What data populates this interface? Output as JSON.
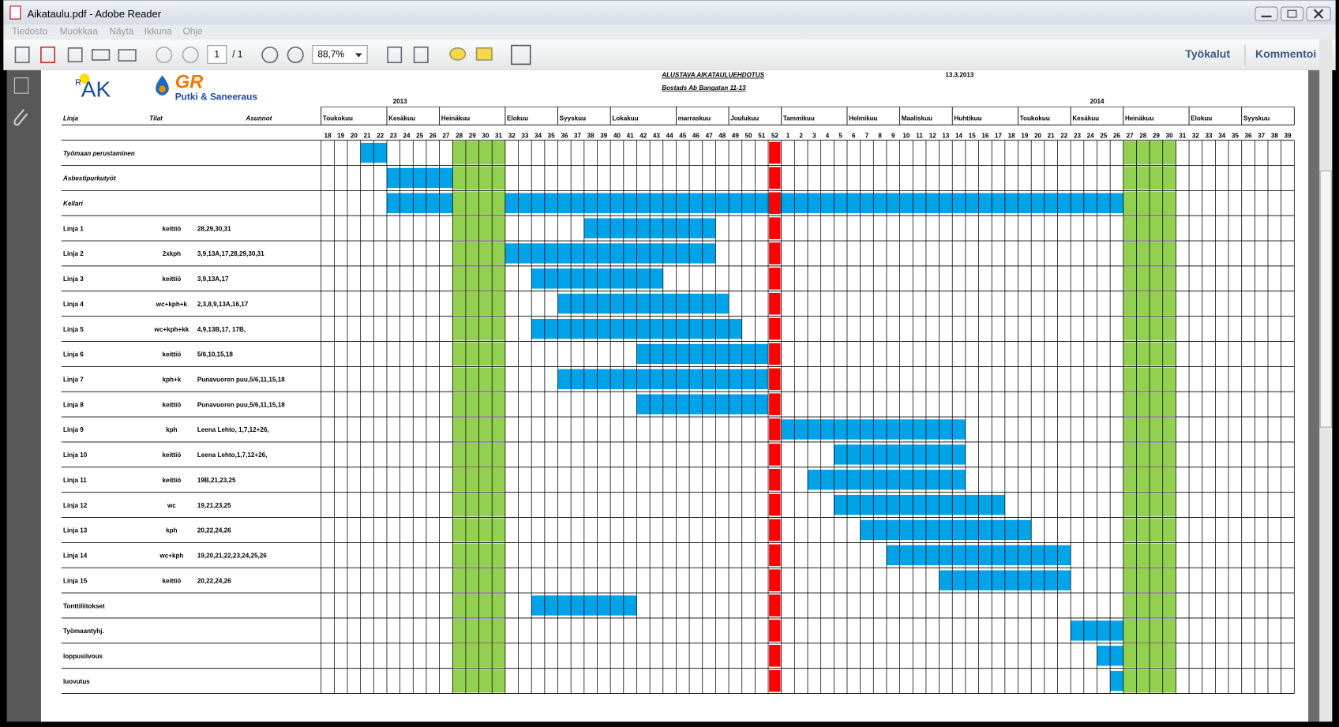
{
  "window": {
    "title": "Aikataulu.pdf - Adobe Reader"
  },
  "menu": [
    "Tiedosto",
    "Muokkaa",
    "Näytä",
    "Ikkuna",
    "Ohje"
  ],
  "toolbar": {
    "page": "1",
    "page_count": "/ 1",
    "zoom": "88,7%",
    "tools": "Työkalut",
    "comment": "Kommentoi"
  },
  "document": {
    "title": "ALUSTAVA AIKATAULUEHDOTUS",
    "subtitle": "Bostads Ab Bangatan 11-13",
    "date": "13.3.2013",
    "logo_r": "R",
    "logo_ak": "AK",
    "logo_gr": "GR",
    "logo_gr_sub": "Putki & Saneeraus",
    "headers": [
      "Linja",
      "Tilat",
      "Asunnot"
    ],
    "years": [
      "2013",
      "2014"
    ],
    "months": [
      "Toukokuu",
      "Kesäkuu",
      "Heinäkuu",
      "Elokuu",
      "Syyskuu",
      "Lokakuu",
      "marraskuu",
      "Joulukuu",
      "Tammikuu",
      "Helmikuu",
      "Maaliskuu",
      "Huhtikuu",
      "Toukokuu",
      "Kesäkuu",
      "Heinäkuu",
      "Elokuu",
      "Syyskuu"
    ],
    "weeks": [
      18,
      19,
      20,
      21,
      22,
      23,
      24,
      25,
      26,
      27,
      28,
      29,
      30,
      31,
      32,
      33,
      34,
      35,
      36,
      37,
      38,
      39,
      40,
      41,
      42,
      43,
      44,
      45,
      46,
      47,
      48,
      49,
      50,
      51,
      52,
      1,
      2,
      3,
      4,
      5,
      6,
      7,
      8,
      9,
      10,
      11,
      12,
      13,
      14,
      15,
      16,
      17,
      18,
      19,
      20,
      21,
      22,
      23,
      24,
      25,
      26,
      27,
      28,
      29,
      30,
      31,
      32,
      33,
      34,
      35,
      36,
      37,
      38,
      39
    ],
    "rows": [
      {
        "label": "Työmaan perustaminen"
      },
      {
        "label": "Asbestipurkutyöt"
      },
      {
        "label": "Kellari"
      },
      {
        "label": "Linja 1",
        "tilat": "keittiö",
        "asunnot": "28,29,30,31"
      },
      {
        "label": "Linja 2",
        "tilat": "2xkph",
        "asunnot": "3,9,13A,17,28,29,30,31"
      },
      {
        "label": "Linja 3",
        "tilat": "keittiö",
        "asunnot": "3,9,13A,17"
      },
      {
        "label": "Linja 4",
        "tilat": "wc+kph+k",
        "asunnot": "2,3,8,9,13A,16,17"
      },
      {
        "label": "Linja 5",
        "tilat": "wc+kph+kk",
        "asunnot": "4,9,13B,17, 17B,"
      },
      {
        "label": "Linja 6",
        "tilat": "keittiö",
        "asunnot": "5/6,10,15,18"
      },
      {
        "label": "Linja 7",
        "tilat": "kph+k",
        "asunnot": "Punavuoren puu,5/6,11,15,18"
      },
      {
        "label": "Linja 8",
        "tilat": "keittiö",
        "asunnot": "Punavuoren puu,5/6,11,15,18"
      },
      {
        "label": "Linja 9",
        "tilat": "kph",
        "asunnot": "Leena Lehto, 1,7,12+26,"
      },
      {
        "label": "Linja 10",
        "tilat": "keittiö",
        "asunnot": "Leena Lehto,1,7,12+26,"
      },
      {
        "label": "Linja 11",
        "tilat": "keittiö",
        "asunnot": "19B,21,23,25"
      },
      {
        "label": "Linja 12",
        "tilat": "wc",
        "asunnot": "19,21,23,25"
      },
      {
        "label": "Linja 13",
        "tilat": "kph",
        "asunnot": "20,22,24,26"
      },
      {
        "label": "Linja 14",
        "tilat": "wc+kph",
        "asunnot": "19,20,21,22,23,24,25,26"
      },
      {
        "label": "Linja 15",
        "tilat": "keittiö",
        "asunnot": "20,22,24,26"
      },
      {
        "label": "Tonttiliitokset"
      },
      {
        "label": "Työmaantyhj."
      },
      {
        "label": "loppusiivous"
      },
      {
        "label": "luovutus"
      }
    ]
  }
}
